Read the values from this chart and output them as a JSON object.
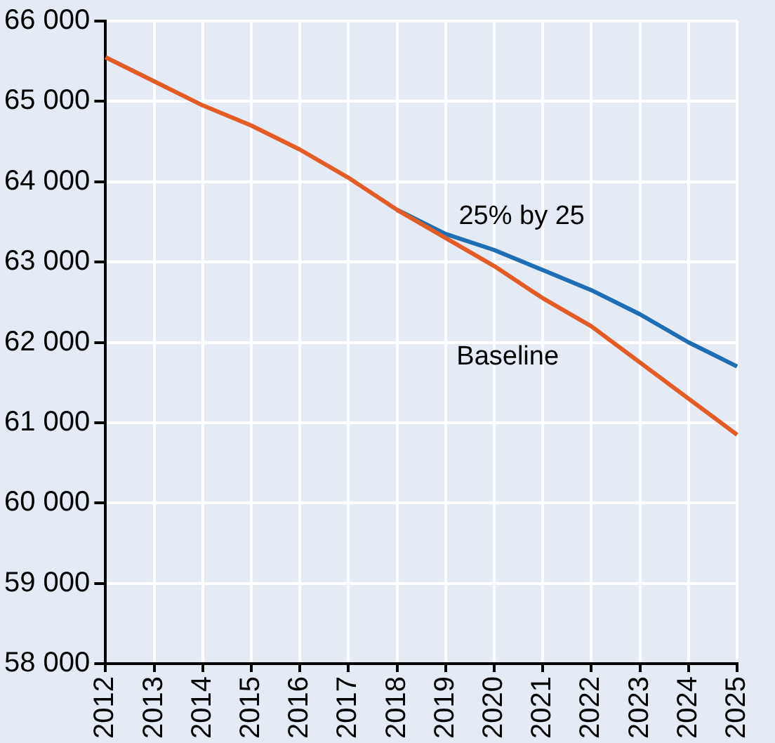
{
  "chart_data": {
    "type": "line",
    "categories": [
      "2012",
      "2013",
      "2014",
      "2015",
      "2016",
      "2017",
      "2018",
      "2019",
      "2020",
      "2021",
      "2022",
      "2023",
      "2024",
      "2025"
    ],
    "series": [
      {
        "name": "25% by 25",
        "color": "#1f6eb4",
        "values": [
          null,
          null,
          null,
          null,
          null,
          null,
          63650,
          63350,
          63150,
          62900,
          62650,
          62350,
          62000,
          61700
        ]
      },
      {
        "name": "Baseline",
        "color": "#e35b25",
        "values": [
          65550,
          65250,
          64950,
          64700,
          64400,
          64050,
          63650,
          63300,
          62950,
          62550,
          62200,
          61750,
          61300,
          60850
        ]
      }
    ],
    "ylim": [
      58000,
      66000
    ],
    "yticks": [
      {
        "value": 58000,
        "label": "58 000"
      },
      {
        "value": 59000,
        "label": "59 000"
      },
      {
        "value": 60000,
        "label": "60 000"
      },
      {
        "value": 61000,
        "label": "61 000"
      },
      {
        "value": 62000,
        "label": "62 000"
      },
      {
        "value": 63000,
        "label": "63 000"
      },
      {
        "value": 64000,
        "label": "64 000"
      },
      {
        "value": 65000,
        "label": "65 000"
      },
      {
        "value": 66000,
        "label": "66 000"
      }
    ],
    "grid": true,
    "marker": "none",
    "line_style": "solid"
  }
}
